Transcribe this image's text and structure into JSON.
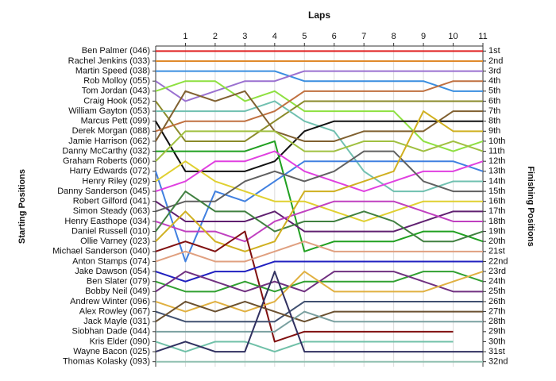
{
  "chart_data": {
    "type": "line",
    "title": "Laps",
    "ylabel": "Starting Positions",
    "y2label": "Finishing Positions",
    "x": [
      0,
      1,
      2,
      3,
      4,
      5,
      6,
      7,
      8,
      9,
      10,
      11
    ],
    "xlim": [
      0,
      11
    ],
    "xticks": [
      1,
      2,
      3,
      4,
      5,
      6,
      7,
      8,
      9,
      10,
      11
    ],
    "ylim": [
      0.5,
      32.5
    ],
    "y_inverted": true,
    "grid": true,
    "yticks": [
      {
        "value": 1,
        "label": "Ben Palmer (046)"
      },
      {
        "value": 2,
        "label": "Rachel Jenkins (033)"
      },
      {
        "value": 3,
        "label": "Martin Speed (038)"
      },
      {
        "value": 4,
        "label": "Rob Molloy (055)"
      },
      {
        "value": 5,
        "label": "Tom Jordan (043)"
      },
      {
        "value": 6,
        "label": "Craig Hook (052)"
      },
      {
        "value": 7,
        "label": "William Gayton (053)"
      },
      {
        "value": 8,
        "label": "Marcus Pett (099)"
      },
      {
        "value": 9,
        "label": "Derek Morgan (088)"
      },
      {
        "value": 10,
        "label": "Jamie Harrison (062)"
      },
      {
        "value": 11,
        "label": "Danny McCarthy (032)"
      },
      {
        "value": 12,
        "label": "Graham Roberts (060)"
      },
      {
        "value": 13,
        "label": "Harry Edwards (072)"
      },
      {
        "value": 14,
        "label": "Henry Riley (029)"
      },
      {
        "value": 15,
        "label": "Danny Sanderson (045)"
      },
      {
        "value": 16,
        "label": "Robert Gilford (041)"
      },
      {
        "value": 17,
        "label": "Simon Steady (063)"
      },
      {
        "value": 18,
        "label": "Henry Easthope (034)"
      },
      {
        "value": 19,
        "label": "Daniel Russell (010)"
      },
      {
        "value": 20,
        "label": "Ollie Varney (023)"
      },
      {
        "value": 21,
        "label": "Michael Sanderson (040)"
      },
      {
        "value": 22,
        "label": "Anton Stamps (074)"
      },
      {
        "value": 23,
        "label": "Jake Dawson (054)"
      },
      {
        "value": 24,
        "label": "Ben Slater (079)"
      },
      {
        "value": 25,
        "label": "Bobby Neil (049)"
      },
      {
        "value": 26,
        "label": "Andrew Winter (096)"
      },
      {
        "value": 27,
        "label": "Alex Rowley (067)"
      },
      {
        "value": 28,
        "label": "Jack Mayle (031)"
      },
      {
        "value": 29,
        "label": "Siobhan Dade (044)"
      },
      {
        "value": 30,
        "label": "Kris Elder (090)"
      },
      {
        "value": 31,
        "label": "Wayne Bacon (025)"
      },
      {
        "value": 32,
        "label": "Thomas Kolasky (093)"
      }
    ],
    "y2lim": [
      0.5,
      32.5
    ],
    "y2ticks": [
      {
        "value": 1,
        "label": "1st"
      },
      {
        "value": 2,
        "label": "2nd"
      },
      {
        "value": 3,
        "label": "3rd"
      },
      {
        "value": 4,
        "label": "4th"
      },
      {
        "value": 5,
        "label": "5th"
      },
      {
        "value": 6,
        "label": "6th"
      },
      {
        "value": 7,
        "label": "7th"
      },
      {
        "value": 8,
        "label": "8th"
      },
      {
        "value": 9,
        "label": "9th"
      },
      {
        "value": 10,
        "label": "10th"
      },
      {
        "value": 11,
        "label": "11th"
      },
      {
        "value": 12,
        "label": "12th"
      },
      {
        "value": 13,
        "label": "13th"
      },
      {
        "value": 14,
        "label": "14th"
      },
      {
        "value": 15,
        "label": "15th"
      },
      {
        "value": 16,
        "label": "16th"
      },
      {
        "value": 17,
        "label": "17th"
      },
      {
        "value": 18,
        "label": "18th"
      },
      {
        "value": 19,
        "label": "19th"
      },
      {
        "value": 20,
        "label": "20th"
      },
      {
        "value": 21,
        "label": "21st"
      },
      {
        "value": 22,
        "label": "22nd"
      },
      {
        "value": 23,
        "label": "23rd"
      },
      {
        "value": 24,
        "label": "24th"
      },
      {
        "value": 25,
        "label": "25th"
      },
      {
        "value": 26,
        "label": "26th"
      },
      {
        "value": 27,
        "label": "27th"
      },
      {
        "value": 28,
        "label": "28th"
      },
      {
        "value": 29,
        "label": "29th"
      },
      {
        "value": 30,
        "label": "30th"
      },
      {
        "value": 31,
        "label": "31st"
      },
      {
        "value": 32,
        "label": "32nd"
      }
    ],
    "series": [
      {
        "color": "#e02020",
        "values": [
          1,
          1,
          1,
          1,
          1,
          1,
          1,
          1,
          1,
          1,
          1,
          1
        ]
      },
      {
        "color": "#e08a2c",
        "values": [
          2,
          2,
          2,
          2,
          2,
          2,
          2,
          2,
          2,
          2,
          2,
          2
        ]
      },
      {
        "color": "#3a8ee0",
        "values": [
          3,
          3,
          3,
          3,
          3,
          4,
          4,
          4,
          4,
          4,
          5,
          5
        ]
      },
      {
        "color": "#9a70d0",
        "values": [
          4,
          6,
          5,
          4,
          4,
          3,
          3,
          3,
          3,
          3,
          3,
          3
        ]
      },
      {
        "color": "#8ee040",
        "values": [
          5,
          4,
          4,
          6,
          5,
          7,
          7,
          7,
          7,
          10,
          11,
          10
        ]
      },
      {
        "color": "#8a8a2a",
        "values": [
          6,
          10,
          10,
          10,
          8,
          6,
          6,
          6,
          6,
          6,
          6,
          6
        ]
      },
      {
        "color": "#70c0b0",
        "values": [
          7,
          7,
          7,
          7,
          6,
          8,
          9,
          13,
          15,
          15,
          14,
          14
        ]
      },
      {
        "color": "#111111",
        "values": [
          8,
          13,
          13,
          13,
          12,
          9,
          8,
          8,
          8,
          8,
          8,
          8
        ]
      },
      {
        "color": "#c07040",
        "values": [
          9,
          8,
          8,
          8,
          7,
          5,
          5,
          5,
          5,
          5,
          4,
          4
        ]
      },
      {
        "color": "#806030",
        "values": [
          10,
          5,
          6,
          5,
          9,
          10,
          10,
          9,
          9,
          9,
          7,
          7
        ]
      },
      {
        "color": "#20a020",
        "values": [
          11,
          11,
          11,
          11,
          10,
          21,
          20,
          20,
          20,
          19,
          19,
          20
        ]
      },
      {
        "color": "#a0c040",
        "values": [
          12,
          9,
          9,
          9,
          9,
          11,
          11,
          10,
          10,
          11,
          10,
          11
        ]
      },
      {
        "color": "#4080e0",
        "values": [
          13,
          22,
          15,
          16,
          14,
          12,
          12,
          12,
          12,
          12,
          12,
          13
        ]
      },
      {
        "color": "#e0d030",
        "values": [
          14,
          12,
          14,
          15,
          16,
          16,
          17,
          18,
          17,
          16,
          16,
          16
        ]
      },
      {
        "color": "#e040e0",
        "values": [
          15,
          14,
          12,
          12,
          11,
          13,
          14,
          15,
          14,
          13,
          13,
          12
        ]
      },
      {
        "color": "#602070",
        "values": [
          16,
          18,
          18,
          18,
          17,
          19,
          19,
          19,
          19,
          18,
          17,
          17
        ]
      },
      {
        "color": "#606060",
        "values": [
          17,
          16,
          16,
          14,
          13,
          14,
          13,
          11,
          11,
          14,
          15,
          15
        ]
      },
      {
        "color": "#c040c0",
        "values": [
          18,
          19,
          19,
          20,
          18,
          17,
          16,
          16,
          16,
          17,
          18,
          18
        ]
      },
      {
        "color": "#408040",
        "values": [
          19,
          15,
          17,
          17,
          19,
          18,
          18,
          17,
          18,
          20,
          20,
          19
        ]
      },
      {
        "color": "#d0b020",
        "values": [
          20,
          17,
          20,
          21,
          20,
          15,
          15,
          14,
          13,
          7,
          9,
          9
        ]
      },
      {
        "color": "#801010",
        "values": [
          21,
          20,
          21,
          19,
          30,
          29,
          29,
          29,
          29,
          29,
          29,
          null
        ]
      },
      {
        "color": "#e0a080",
        "values": [
          22,
          21,
          22,
          22,
          21,
          20,
          21,
          21,
          21,
          21,
          21,
          21
        ]
      },
      {
        "color": "#2020c0",
        "values": [
          23,
          24,
          23,
          23,
          22,
          22,
          22,
          22,
          22,
          22,
          22,
          22
        ]
      },
      {
        "color": "#30a030",
        "values": [
          24,
          25,
          25,
          24,
          25,
          24,
          24,
          24,
          24,
          23,
          23,
          24
        ]
      },
      {
        "color": "#703080",
        "values": [
          25,
          23,
          24,
          25,
          24,
          25,
          23,
          23,
          23,
          24,
          25,
          25
        ]
      },
      {
        "color": "#e0b040",
        "values": [
          26,
          27,
          26,
          27,
          26,
          23,
          25,
          25,
          25,
          25,
          24,
          23
        ]
      },
      {
        "color": "#405070",
        "values": [
          27,
          28,
          28,
          28,
          28,
          26,
          26,
          26,
          26,
          26,
          26,
          26
        ]
      },
      {
        "color": "#6a5030",
        "values": [
          28,
          26,
          27,
          26,
          27,
          28,
          27,
          27,
          27,
          27,
          27,
          27
        ]
      },
      {
        "color": "#7aa0a0",
        "values": [
          29,
          29,
          29,
          29,
          29,
          27,
          28,
          28,
          28,
          28,
          28,
          28
        ]
      },
      {
        "color": "#70c0a8",
        "values": [
          30,
          31,
          30,
          30,
          31,
          30,
          30,
          30,
          30,
          30,
          30,
          null
        ]
      },
      {
        "color": "#303060",
        "values": [
          31,
          30,
          31,
          31,
          23,
          31,
          31,
          31,
          31,
          31,
          31,
          31
        ]
      },
      {
        "color": "#90c0b0",
        "values": [
          32,
          32,
          32,
          32,
          32,
          32,
          32,
          32,
          32,
          32,
          32,
          32
        ]
      }
    ]
  }
}
